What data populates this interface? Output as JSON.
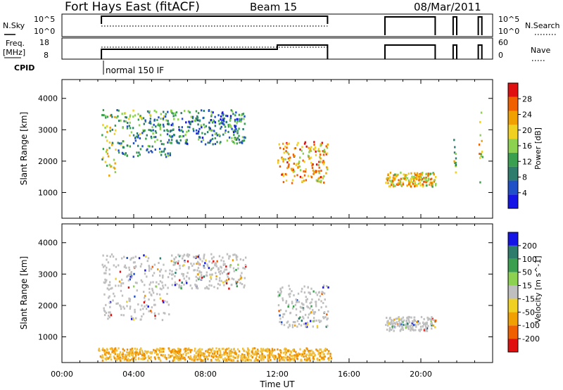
{
  "header": {
    "title": "Fort Hays East (fitACF)",
    "beam": "Beam 15",
    "date": "08/Mar/2011"
  },
  "nsky_panel": {
    "left_label": "N.Sky",
    "left_ticks": [
      "10^5",
      "10^0"
    ],
    "right_ticks": [
      "10^5",
      "10^0"
    ],
    "right_label": "N.Search"
  },
  "freq_panel": {
    "left_label_line1": "Freq.",
    "left_label_line2": "[MHz]",
    "left_ticks": [
      "18",
      "8"
    ],
    "right_ticks": [
      "60",
      "0"
    ],
    "right_label": "Nave"
  },
  "cpid": {
    "label": "CPID",
    "mode": "normal 150 IF"
  },
  "colors": {
    "scale": [
      "#1414e6",
      "#2050c8",
      "#2e7d6c",
      "#3aa050",
      "#8cd250",
      "#f0d020",
      "#f0a000",
      "#f06000",
      "#e01010"
    ],
    "gray": "#bfbfbf"
  },
  "chart_data": [
    {
      "type": "heatmap",
      "title": "",
      "xlabel": "Time UT",
      "ylabel": "Slant Range [km]",
      "xlim": [
        "00:00",
        "24:00"
      ],
      "ylim": [
        180,
        4600
      ],
      "x_ticks": [
        "00:00",
        "04:00",
        "08:00",
        "12:00",
        "16:00",
        "20:00"
      ],
      "y_ticks": [
        "1000",
        "2000",
        "3000",
        "4000"
      ],
      "colorbar": {
        "label": "Power [dB]",
        "ticks": [
          "4",
          "8",
          "12",
          "16",
          "20",
          "24",
          "28"
        ],
        "range": [
          0,
          30
        ]
      },
      "echo_regions": [
        {
          "t_start": 2.2,
          "t_end": 3.0,
          "r_start": 1500,
          "r_end": 3600,
          "power": 16
        },
        {
          "t_start": 3.0,
          "t_end": 6.0,
          "r_start": 2100,
          "r_end": 3600,
          "power": 10
        },
        {
          "t_start": 6.0,
          "t_end": 10.2,
          "r_start": 2500,
          "r_end": 3600,
          "power": 8
        },
        {
          "t_start": 12.0,
          "t_end": 14.8,
          "r_start": 1250,
          "r_end": 2600,
          "power": 22
        },
        {
          "t_start": 18.0,
          "t_end": 20.8,
          "r_start": 1150,
          "r_end": 1600,
          "power": 20
        },
        {
          "t_start": 21.8,
          "t_end": 22.0,
          "r_start": 1200,
          "r_end": 2800,
          "power": 14
        },
        {
          "t_start": 23.2,
          "t_end": 23.4,
          "r_start": 1200,
          "r_end": 3600,
          "power": 18
        }
      ]
    },
    {
      "type": "heatmap",
      "title": "",
      "xlabel": "Time UT",
      "ylabel": "Slant Range [km]",
      "xlim": [
        "00:00",
        "24:00"
      ],
      "ylim": [
        180,
        4600
      ],
      "x_ticks": [
        "00:00",
        "04:00",
        "08:00",
        "12:00",
        "16:00",
        "20:00"
      ],
      "y_ticks": [
        "1000",
        "2000",
        "3000",
        "4000"
      ],
      "colorbar": {
        "label": "Velocity [m s^-1]",
        "ticks": [
          "200",
          "100",
          "50",
          "15",
          "-15",
          "-50",
          "-100",
          "-200"
        ],
        "range": [
          -250,
          250
        ]
      },
      "echo_regions": [
        {
          "t_start": 2.2,
          "t_end": 6.0,
          "r_start": 1500,
          "r_end": 3600,
          "velocity": 0
        },
        {
          "t_start": 6.0,
          "t_end": 10.2,
          "r_start": 2500,
          "r_end": 3600,
          "velocity": 0
        },
        {
          "t_start": 12.0,
          "t_end": 14.8,
          "r_start": 1250,
          "r_end": 2600,
          "velocity": 0
        },
        {
          "t_start": 18.0,
          "t_end": 20.8,
          "r_start": 1150,
          "r_end": 1600,
          "velocity": 0
        },
        {
          "t_start": 2.0,
          "t_end": 15.0,
          "r_start": 200,
          "r_end": 600,
          "velocity": -60
        }
      ]
    }
  ]
}
